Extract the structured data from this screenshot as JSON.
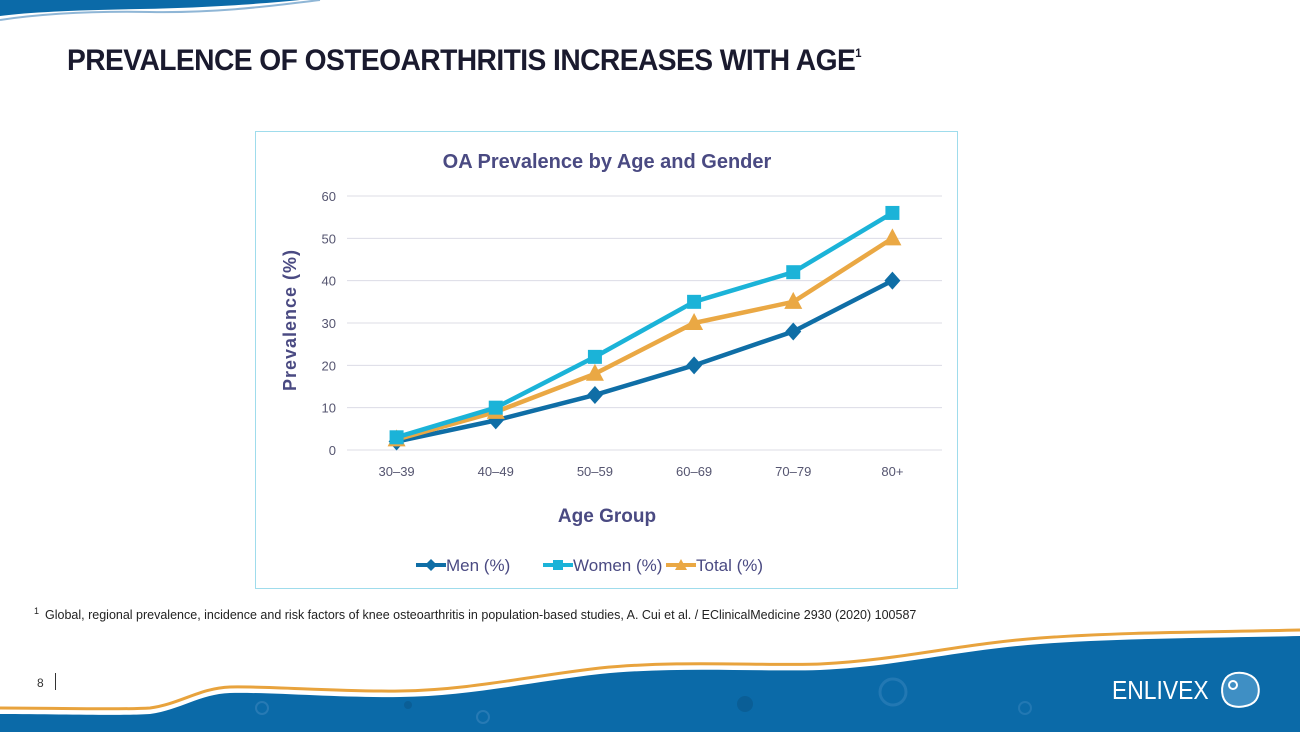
{
  "slide": {
    "title": "PREVALENCE OF OSTEOARTHRITIS INCREASES WITH AGE",
    "title_superscript": "1",
    "footnote_marker": "1",
    "footnote": "Global, regional prevalence, incidence and risk factors of knee osteoarthritis in population-based studies, A. Cui et al. / EClinicalMedicine 2930 (2020) 100587",
    "page_number": "8",
    "logo_text": "ENLIVEX",
    "colors": {
      "brand_blue": "#0b6aa8",
      "gold": "#e8a33d",
      "title_text": "#1a1a2e"
    }
  },
  "chart_data": {
    "type": "line",
    "title": "OA Prevalence by Age and Gender",
    "xlabel": "Age Group",
    "ylabel": "Prevalence (%)",
    "categories": [
      "30–39",
      "40–49",
      "50–59",
      "60–69",
      "70–79",
      "80+"
    ],
    "ylim": [
      0,
      60
    ],
    "yticks": [
      0,
      10,
      20,
      30,
      40,
      50,
      60
    ],
    "grid": true,
    "legend_position": "bottom",
    "series": [
      {
        "name": "Men (%)",
        "marker": "diamond",
        "color": "#0f6ea6",
        "values": [
          2,
          7,
          13,
          20,
          28,
          40
        ]
      },
      {
        "name": "Women (%)",
        "marker": "square",
        "color": "#1bb3d8",
        "values": [
          3,
          10,
          22,
          35,
          42,
          56
        ]
      },
      {
        "name": "Total (%)",
        "marker": "triangle",
        "color": "#eaa844",
        "values": [
          2.5,
          9,
          18,
          30,
          35,
          50
        ]
      }
    ]
  }
}
